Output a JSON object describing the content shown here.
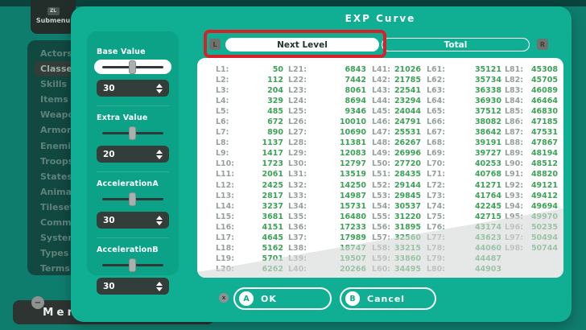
{
  "colors": {
    "background": "#0F7D6E",
    "frame_strips": "#0A433C",
    "dialog_teal": "#10AE92",
    "slider_panel_teal": "#0BA287",
    "selection_red": "#D3232A",
    "value_green": "#3CA257",
    "label_gray": "#97A19C"
  },
  "background_layer": {
    "submenu": {
      "badge": "ZL",
      "label": "Submenu"
    },
    "sidebar": {
      "items": [
        "Actors",
        "Classes",
        "Skills",
        "Items",
        "Weapons",
        "Armors",
        "Enemies",
        "Troops",
        "States",
        "Animations",
        "Tilesets",
        "Common Events",
        "System",
        "Types",
        "Terms"
      ],
      "selected": "Classes"
    },
    "menu": {
      "hint": "−",
      "label": "Menu"
    }
  },
  "dialog": {
    "title": "EXP Curve",
    "tabs": {
      "left_bumper": "L",
      "right_bumper": "R",
      "items": [
        {
          "label": "Next Level",
          "selected": true
        },
        {
          "label": "Total",
          "selected": false
        }
      ]
    },
    "sliders": [
      {
        "label": "Base Value",
        "value": "30",
        "focused": true,
        "thumb_percent": 50
      },
      {
        "label": "Extra Value",
        "value": "20",
        "focused": false,
        "thumb_percent": 50
      },
      {
        "label": "AccelerationA",
        "value": "30",
        "focused": false,
        "thumb_percent": 50
      },
      {
        "label": "AccelerationB",
        "value": "30",
        "focused": false,
        "thumb_percent": 50
      }
    ],
    "footer": {
      "x_hint": "x",
      "ok": {
        "hint": "A",
        "label": "OK"
      },
      "cancel": {
        "hint": "B",
        "label": "Cancel"
      }
    }
  },
  "exp_table": {
    "columns": [
      {
        "pairs": [
          [
            "L1:",
            "50"
          ],
          [
            "L2:",
            "112"
          ],
          [
            "L3:",
            "204"
          ],
          [
            "L4:",
            "329"
          ],
          [
            "L5:",
            "485"
          ],
          [
            "L6:",
            "672"
          ],
          [
            "L7:",
            "890"
          ],
          [
            "L8:",
            "1137"
          ],
          [
            "L9:",
            "1417"
          ],
          [
            "L10:",
            "1723"
          ],
          [
            "L11:",
            "2061"
          ],
          [
            "L12:",
            "2425"
          ],
          [
            "L13:",
            "2817"
          ],
          [
            "L14:",
            "3237"
          ],
          [
            "L15:",
            "3681"
          ],
          [
            "L16:",
            "4151"
          ],
          [
            "L17:",
            "4645"
          ],
          [
            "L18:",
            "5162"
          ],
          [
            "L19:",
            "5701"
          ],
          [
            "L20:",
            "6262"
          ]
        ]
      },
      {
        "pairs": [
          [
            "L21:",
            "6843"
          ],
          [
            "L22:",
            "7442"
          ],
          [
            "L23:",
            "8061"
          ],
          [
            "L24:",
            "8694"
          ],
          [
            "L25:",
            "9346"
          ],
          [
            "L26:",
            "10010"
          ],
          [
            "L27:",
            "10690"
          ],
          [
            "L28:",
            "11381"
          ],
          [
            "L29:",
            "12083"
          ],
          [
            "L30:",
            "12797"
          ],
          [
            "L31:",
            "13519"
          ],
          [
            "L32:",
            "14250"
          ],
          [
            "L33:",
            "14987"
          ],
          [
            "L34:",
            "15731"
          ],
          [
            "L35:",
            "16480"
          ],
          [
            "L36:",
            "17233"
          ],
          [
            "L37:",
            "17989"
          ],
          [
            "L38:",
            "18747"
          ],
          [
            "L39:",
            "19507"
          ],
          [
            "L40:",
            "20266"
          ]
        ]
      },
      {
        "pairs": [
          [
            "L41:",
            "21026"
          ],
          [
            "L42:",
            "21785"
          ],
          [
            "L43:",
            "22541"
          ],
          [
            "L44:",
            "23294"
          ],
          [
            "L45:",
            "24044"
          ],
          [
            "L46:",
            "24791"
          ],
          [
            "L47:",
            "25531"
          ],
          [
            "L48:",
            "26267"
          ],
          [
            "L49:",
            "26996"
          ],
          [
            "L50:",
            "27720"
          ],
          [
            "L51:",
            "28435"
          ],
          [
            "L52:",
            "29144"
          ],
          [
            "L53:",
            "29845"
          ],
          [
            "L54:",
            "30537"
          ],
          [
            "L55:",
            "31220"
          ],
          [
            "L56:",
            "31895"
          ],
          [
            "L57:",
            "32560"
          ],
          [
            "L58:",
            "33215"
          ],
          [
            "L59:",
            "33860"
          ],
          [
            "L60:",
            "34495"
          ]
        ]
      },
      {
        "pairs": [
          [
            "L61:",
            "35121"
          ],
          [
            "L62:",
            "35734"
          ],
          [
            "L63:",
            "36338"
          ],
          [
            "L64:",
            "36930"
          ],
          [
            "L65:",
            "37512"
          ],
          [
            "L66:",
            "38082"
          ],
          [
            "L67:",
            "38642"
          ],
          [
            "L68:",
            "39191"
          ],
          [
            "L69:",
            "39727"
          ],
          [
            "L70:",
            "40253"
          ],
          [
            "L71:",
            "40768"
          ],
          [
            "L72:",
            "41271"
          ],
          [
            "L73:",
            "41764"
          ],
          [
            "L74:",
            "42245"
          ],
          [
            "L75:",
            "42715"
          ],
          [
            "L76:",
            "43174"
          ],
          [
            "L77:",
            "43623"
          ],
          [
            "L78:",
            "44060"
          ],
          [
            "L79:",
            "44487"
          ],
          [
            "L80:",
            "44903"
          ]
        ]
      },
      {
        "pairs": [
          [
            "L81:",
            "45308"
          ],
          [
            "L82:",
            "45705"
          ],
          [
            "L83:",
            "46089"
          ],
          [
            "L84:",
            "46464"
          ],
          [
            "L85:",
            "46830"
          ],
          [
            "L86:",
            "47185"
          ],
          [
            "L87:",
            "47531"
          ],
          [
            "L88:",
            "47867"
          ],
          [
            "L89:",
            "48194"
          ],
          [
            "L90:",
            "48512"
          ],
          [
            "L91:",
            "48820"
          ],
          [
            "L92:",
            "49121"
          ],
          [
            "L93:",
            "49412"
          ],
          [
            "L94:",
            "49694"
          ],
          [
            "L95:",
            "49970"
          ],
          [
            "L96:",
            "50235"
          ],
          [
            "L97:",
            "50494"
          ],
          [
            "L98:",
            "50744"
          ]
        ]
      }
    ]
  }
}
